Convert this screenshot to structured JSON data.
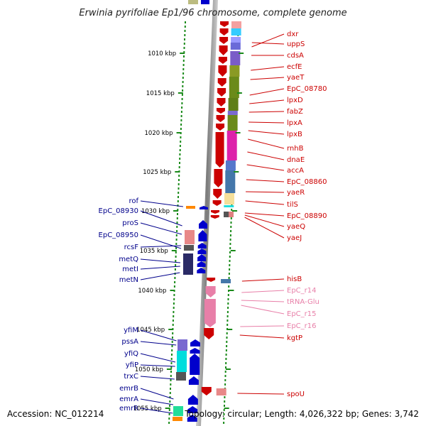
{
  "title": "Erwinia pyrifoliae Ep1/96 chromosome, complete genome",
  "footer": {
    "accession": "Accession: NC_012214",
    "summary": "Topology: circular; Length: 4,026,322 bp; Genes: 3,742"
  },
  "kbp_ticks": [
    {
      "label": "1010 kbp"
    },
    {
      "label": "1015 kbp"
    },
    {
      "label": "1020 kbp"
    },
    {
      "label": "1025 kbp"
    },
    {
      "label": "1030 kbp"
    },
    {
      "label": "1035 kbp"
    },
    {
      "label": "1040 kbp"
    },
    {
      "label": "1045 kbp"
    },
    {
      "label": "1050 kbp"
    },
    {
      "label": "1055 kbp"
    }
  ],
  "right_genes": [
    {
      "name": "dxr",
      "color": "#cc0000"
    },
    {
      "name": "uppS",
      "color": "#cc0000"
    },
    {
      "name": "cdsA",
      "color": "#cc0000"
    },
    {
      "name": "ecfE",
      "color": "#cc0000"
    },
    {
      "name": "yaeT",
      "color": "#cc0000"
    },
    {
      "name": "EpC_08780",
      "color": "#cc0000"
    },
    {
      "name": "lpxD",
      "color": "#cc0000"
    },
    {
      "name": "fabZ",
      "color": "#cc0000"
    },
    {
      "name": "lpxA",
      "color": "#cc0000"
    },
    {
      "name": "lpxB",
      "color": "#cc0000"
    },
    {
      "name": "rnhB",
      "color": "#cc0000"
    },
    {
      "name": "dnaE",
      "color": "#cc0000"
    },
    {
      "name": "accA",
      "color": "#cc0000"
    },
    {
      "name": "EpC_08860",
      "color": "#cc0000"
    },
    {
      "name": "yaeR",
      "color": "#cc0000"
    },
    {
      "name": "tilS",
      "color": "#cc0000"
    },
    {
      "name": "EpC_08890",
      "color": "#cc0000"
    },
    {
      "name": "yaeQ",
      "color": "#cc0000"
    },
    {
      "name": "yaeJ",
      "color": "#cc0000"
    },
    {
      "name": "hisB",
      "color": "#cc0000"
    },
    {
      "name": "EpC_r14",
      "color": "#e87fa8"
    },
    {
      "name": "tRNA-Glu",
      "color": "#e87fa8"
    },
    {
      "name": "EpC_r15",
      "color": "#e87fa8"
    },
    {
      "name": "EpC_r16",
      "color": "#e87fa8"
    },
    {
      "name": "kgtP",
      "color": "#cc0000"
    },
    {
      "name": "spoU",
      "color": "#cc0000"
    }
  ],
  "left_genes": [
    {
      "name": "rof"
    },
    {
      "name": "EpC_08930"
    },
    {
      "name": "proS"
    },
    {
      "name": "EpC_08950"
    },
    {
      "name": "rcsF"
    },
    {
      "name": "metQ"
    },
    {
      "name": "metI"
    },
    {
      "name": "metN"
    },
    {
      "name": "yfiM"
    },
    {
      "name": "pssA"
    },
    {
      "name": "yfiQ"
    },
    {
      "name": "yfiP"
    },
    {
      "name": "trxC"
    },
    {
      "name": "emrB"
    },
    {
      "name": "emrA"
    },
    {
      "name": "emrR"
    }
  ],
  "colors": {
    "forward_strand": "#cc0000",
    "reverse_strand": "#0000cc",
    "rna": "#e87fa8",
    "left_label": "#00008b",
    "tick_green": "#1a8a1a",
    "backbone": "#8a8a8a"
  }
}
